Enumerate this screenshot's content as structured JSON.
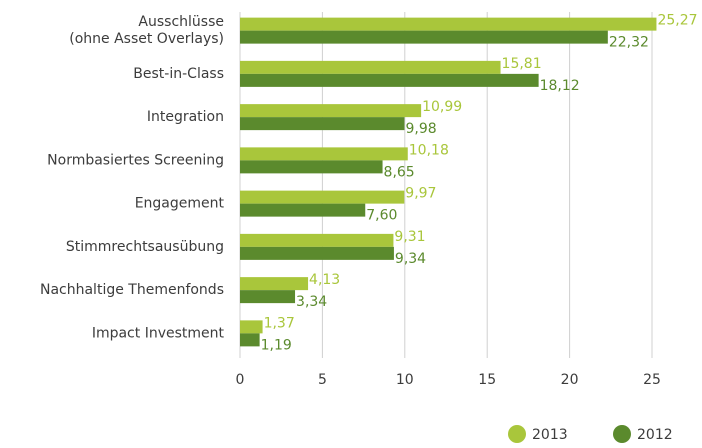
{
  "chart_data": {
    "type": "bar",
    "orientation": "horizontal",
    "categories": [
      "Ausschlüsse\n(ohne Asset Overlays)",
      "Best-in-Class",
      "Integration",
      "Normbasiertes Screening",
      "Engagement",
      "Stimmrechtsausübung",
      "Nachhaltige Themenfonds",
      "Impact Investment"
    ],
    "series": [
      {
        "name": "2013",
        "color": "#a9c63b",
        "values": [
          25.27,
          15.81,
          10.99,
          10.18,
          9.97,
          9.31,
          4.13,
          1.37
        ],
        "value_labels": [
          "25,27",
          "15,81",
          "10,99",
          "10,18",
          "9,97",
          "9,31",
          "4,13",
          "1,37"
        ]
      },
      {
        "name": "2012",
        "color": "#5b8a2d",
        "values": [
          22.32,
          18.12,
          9.98,
          8.65,
          7.6,
          9.34,
          3.34,
          1.19
        ],
        "value_labels": [
          "22,32",
          "18,12",
          "9,98",
          "8,65",
          "7,60",
          "9,34",
          "3,34",
          "1,19"
        ]
      }
    ],
    "xlim": [
      0,
      25
    ],
    "xticks": [
      0,
      5,
      10,
      15,
      20,
      25
    ],
    "grid": true,
    "legend": "bottom-right"
  }
}
